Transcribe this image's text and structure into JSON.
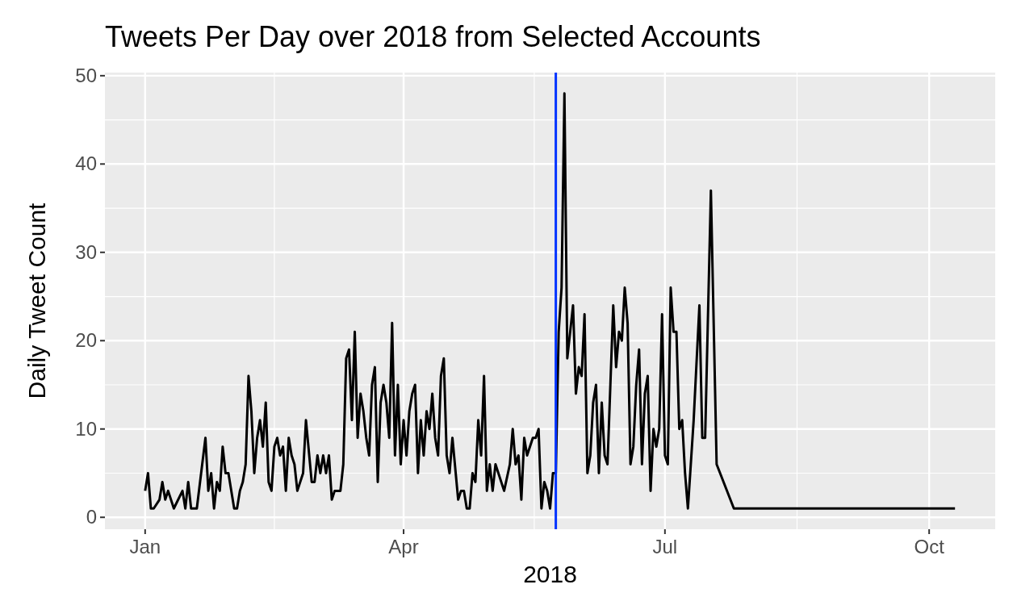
{
  "chart_data": {
    "type": "line",
    "title": "Tweets Per Day over 2018 from Selected Accounts",
    "xlabel": "2018",
    "ylabel": "Daily Tweet Count",
    "x": [
      "2018-01-01",
      "2018-01-02",
      "2018-01-03",
      "2018-01-04",
      "2018-01-06",
      "2018-01-07",
      "2018-01-08",
      "2018-01-09",
      "2018-01-11",
      "2018-01-14",
      "2018-01-15",
      "2018-01-16",
      "2018-01-17",
      "2018-01-19",
      "2018-01-22",
      "2018-01-23",
      "2018-01-24",
      "2018-01-25",
      "2018-01-26",
      "2018-01-27",
      "2018-01-28",
      "2018-01-29",
      "2018-01-30",
      "2018-02-01",
      "2018-02-02",
      "2018-02-03",
      "2018-02-04",
      "2018-02-05",
      "2018-02-06",
      "2018-02-07",
      "2018-02-08",
      "2018-02-09",
      "2018-02-10",
      "2018-02-11",
      "2018-02-12",
      "2018-02-13",
      "2018-02-14",
      "2018-02-15",
      "2018-02-16",
      "2018-02-17",
      "2018-02-18",
      "2018-02-19",
      "2018-02-20",
      "2018-02-21",
      "2018-02-22",
      "2018-02-23",
      "2018-02-25",
      "2018-02-26",
      "2018-02-28",
      "2018-03-01",
      "2018-03-02",
      "2018-03-03",
      "2018-03-04",
      "2018-03-05",
      "2018-03-06",
      "2018-03-07",
      "2018-03-08",
      "2018-03-10",
      "2018-03-11",
      "2018-03-12",
      "2018-03-13",
      "2018-03-14",
      "2018-03-15",
      "2018-03-16",
      "2018-03-17",
      "2018-03-18",
      "2018-03-19",
      "2018-03-20",
      "2018-03-21",
      "2018-03-22",
      "2018-03-23",
      "2018-03-24",
      "2018-03-25",
      "2018-03-26",
      "2018-03-27",
      "2018-03-28",
      "2018-03-29",
      "2018-03-30",
      "2018-03-31",
      "2018-04-01",
      "2018-04-02",
      "2018-04-03",
      "2018-04-04",
      "2018-04-05",
      "2018-04-06",
      "2018-04-07",
      "2018-04-08",
      "2018-04-09",
      "2018-04-10",
      "2018-04-11",
      "2018-04-12",
      "2018-04-13",
      "2018-04-14",
      "2018-04-15",
      "2018-04-16",
      "2018-04-17",
      "2018-04-18",
      "2018-04-20",
      "2018-04-21",
      "2018-04-22",
      "2018-04-23",
      "2018-04-24",
      "2018-04-25",
      "2018-04-26",
      "2018-04-27",
      "2018-04-28",
      "2018-04-29",
      "2018-04-30",
      "2018-05-01",
      "2018-05-02",
      "2018-05-03",
      "2018-05-06",
      "2018-05-08",
      "2018-05-09",
      "2018-05-10",
      "2018-05-11",
      "2018-05-12",
      "2018-05-13",
      "2018-05-14",
      "2018-05-16",
      "2018-05-17",
      "2018-05-18",
      "2018-05-19",
      "2018-05-20",
      "2018-05-21",
      "2018-05-22",
      "2018-05-23",
      "2018-05-24",
      "2018-05-25",
      "2018-05-26",
      "2018-05-27",
      "2018-05-28",
      "2018-05-29",
      "2018-05-30",
      "2018-05-31",
      "2018-06-01",
      "2018-06-02",
      "2018-06-03",
      "2018-06-04",
      "2018-06-05",
      "2018-06-06",
      "2018-06-07",
      "2018-06-08",
      "2018-06-09",
      "2018-06-10",
      "2018-06-11",
      "2018-06-12",
      "2018-06-13",
      "2018-06-14",
      "2018-06-15",
      "2018-06-16",
      "2018-06-17",
      "2018-06-18",
      "2018-06-19",
      "2018-06-20",
      "2018-06-21",
      "2018-06-22",
      "2018-06-23",
      "2018-06-24",
      "2018-06-25",
      "2018-06-26",
      "2018-06-27",
      "2018-06-28",
      "2018-06-29",
      "2018-06-30",
      "2018-07-01",
      "2018-07-02",
      "2018-07-03",
      "2018-07-04",
      "2018-07-05",
      "2018-07-06",
      "2018-07-07",
      "2018-07-08",
      "2018-07-09",
      "2018-07-10",
      "2018-07-11",
      "2018-07-13",
      "2018-07-14",
      "2018-07-15",
      "2018-07-17",
      "2018-07-19",
      "2018-07-25",
      "2018-10-10"
    ],
    "series": [
      {
        "color": "#000000",
        "values": [
          3,
          5,
          1,
          1,
          2,
          4,
          2,
          3,
          1,
          3,
          1,
          4,
          1,
          1,
          9,
          3,
          5,
          1,
          4,
          3,
          8,
          5,
          5,
          1,
          1,
          3,
          4,
          6,
          16,
          12,
          5,
          9,
          11,
          8,
          13,
          4,
          3,
          8,
          9,
          7,
          8,
          3,
          9,
          7,
          6,
          3,
          5,
          11,
          4,
          4,
          7,
          5,
          7,
          5,
          7,
          2,
          3,
          3,
          6,
          18,
          19,
          11,
          21,
          9,
          14,
          12,
          9,
          7,
          15,
          17,
          4,
          13,
          15,
          13,
          9,
          22,
          7,
          15,
          6,
          11,
          7,
          12,
          14,
          15,
          5,
          11,
          7,
          12,
          10,
          14,
          9,
          7,
          16,
          18,
          7,
          5,
          9,
          2,
          3,
          3,
          1,
          1,
          5,
          4,
          11,
          7,
          16,
          3,
          6,
          3,
          6,
          3,
          6,
          10,
          6,
          7,
          2,
          9,
          7,
          9,
          9,
          10,
          1,
          4,
          3,
          1,
          5,
          5,
          21,
          26,
          48,
          18,
          21,
          24,
          14,
          17,
          16,
          23,
          5,
          7,
          13,
          15,
          5,
          13,
          7,
          6,
          15,
          24,
          17,
          21,
          20,
          26,
          22,
          6,
          8,
          15,
          19,
          6,
          14,
          16,
          3,
          10,
          8,
          10,
          23,
          7,
          6,
          26,
          21,
          21,
          10,
          11,
          5,
          1,
          6,
          11,
          24,
          9,
          9,
          37,
          6,
          1,
          1
        ]
      }
    ],
    "xlim": [
      "2017-12-18",
      "2018-10-24"
    ],
    "xticks": [
      {
        "value": "2018-01-01",
        "label": "Jan"
      },
      {
        "value": "2018-04-01",
        "label": "Apr"
      },
      {
        "value": "2018-07-01",
        "label": "Jul"
      },
      {
        "value": "2018-10-01",
        "label": "Oct"
      }
    ],
    "ylim": [
      -1.35,
      50.35
    ],
    "yticks": [
      0,
      10,
      20,
      30,
      40,
      50
    ],
    "grid": true,
    "ref_lines": [
      {
        "axis": "x",
        "value": "2018-05-24",
        "color": "#0033ff"
      }
    ]
  }
}
